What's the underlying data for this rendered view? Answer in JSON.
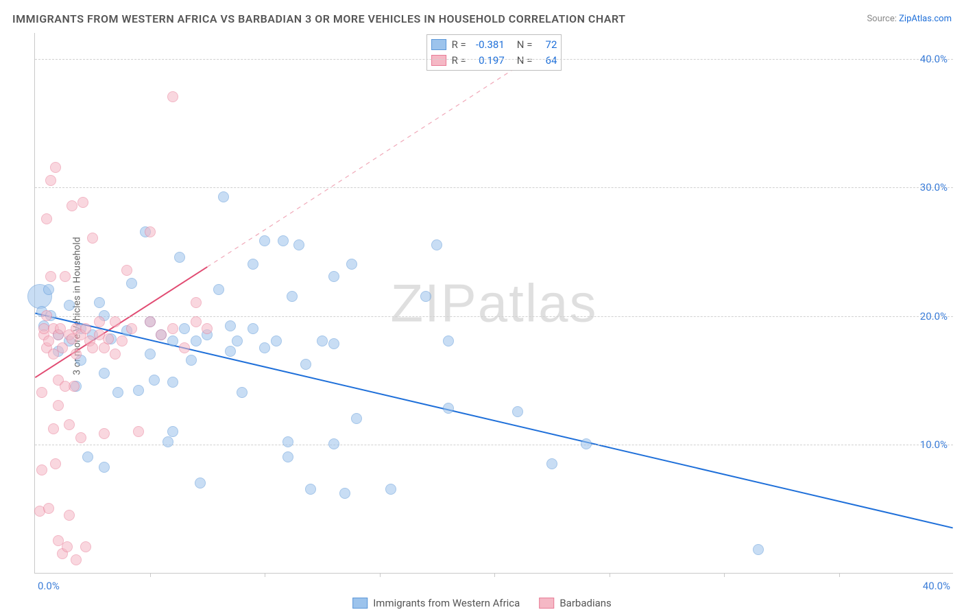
{
  "title": "IMMIGRANTS FROM WESTERN AFRICA VS BARBADIAN 3 OR MORE VEHICLES IN HOUSEHOLD CORRELATION CHART",
  "source_label": "Source:",
  "source_name": "ZipAtlas.com",
  "y_axis_title": "3 or more Vehicles in Household",
  "watermark": "ZIPatlas",
  "chart": {
    "type": "scatter",
    "xlim": [
      0,
      40
    ],
    "ylim": [
      0,
      42
    ],
    "x_label_min": "0.0%",
    "x_label_max": "40.0%",
    "y_gridlines": [
      10,
      20,
      30,
      40
    ],
    "y_gridline_labels": [
      "10.0%",
      "20.0%",
      "30.0%",
      "40.0%"
    ],
    "x_ticks": [
      5,
      10,
      15,
      20,
      25,
      30,
      35
    ],
    "background_color": "#ffffff",
    "grid_color": "#d0d0d0",
    "axis_color": "#c8c8c8",
    "tick_label_color": "#3b7dd8",
    "marker_radius": 8,
    "large_marker_radius": 18,
    "marker_opacity": 0.55,
    "series": [
      {
        "key": "western_africa",
        "label": "Immigrants from Western Africa",
        "fill": "#9cc3ec",
        "stroke": "#5a96d8",
        "trend": {
          "x1": 0,
          "y1": 20.2,
          "x2": 40,
          "y2": 3.5,
          "dash": "none",
          "color": "#1e6fd9",
          "width": 2
        },
        "R": "-0.381",
        "N": "72",
        "points": [
          {
            "x": 0.2,
            "y": 21.5,
            "r": 18
          },
          {
            "x": 0.3,
            "y": 20.3
          },
          {
            "x": 0.4,
            "y": 19.2
          },
          {
            "x": 0.6,
            "y": 22.0
          },
          {
            "x": 0.7,
            "y": 20.0
          },
          {
            "x": 1.0,
            "y": 18.5
          },
          {
            "x": 1.0,
            "y": 17.2
          },
          {
            "x": 1.5,
            "y": 20.8
          },
          {
            "x": 1.5,
            "y": 18.0
          },
          {
            "x": 1.8,
            "y": 14.5
          },
          {
            "x": 2.0,
            "y": 19.0
          },
          {
            "x": 2.0,
            "y": 16.5
          },
          {
            "x": 2.3,
            "y": 9.0
          },
          {
            "x": 2.5,
            "y": 18.5
          },
          {
            "x": 2.8,
            "y": 21.0
          },
          {
            "x": 3.0,
            "y": 20.0
          },
          {
            "x": 3.0,
            "y": 15.5
          },
          {
            "x": 3.0,
            "y": 8.2
          },
          {
            "x": 3.3,
            "y": 18.2
          },
          {
            "x": 3.6,
            "y": 14.0
          },
          {
            "x": 4.0,
            "y": 18.8
          },
          {
            "x": 4.2,
            "y": 22.5
          },
          {
            "x": 4.5,
            "y": 14.2
          },
          {
            "x": 4.8,
            "y": 26.5
          },
          {
            "x": 5.0,
            "y": 19.5
          },
          {
            "x": 5.0,
            "y": 17.0
          },
          {
            "x": 5.2,
            "y": 15.0
          },
          {
            "x": 5.5,
            "y": 18.5
          },
          {
            "x": 5.8,
            "y": 10.2
          },
          {
            "x": 6.0,
            "y": 18.0
          },
          {
            "x": 6.0,
            "y": 14.8
          },
          {
            "x": 6.3,
            "y": 24.5
          },
          {
            "x": 6.5,
            "y": 19.0
          },
          {
            "x": 6.8,
            "y": 16.5
          },
          {
            "x": 7.0,
            "y": 18.0
          },
          {
            "x": 7.2,
            "y": 7.0
          },
          {
            "x": 7.5,
            "y": 18.5
          },
          {
            "x": 8.0,
            "y": 22.0
          },
          {
            "x": 8.2,
            "y": 29.2
          },
          {
            "x": 8.5,
            "y": 19.2
          },
          {
            "x": 8.5,
            "y": 17.2
          },
          {
            "x": 8.8,
            "y": 18.0
          },
          {
            "x": 9.0,
            "y": 14.0
          },
          {
            "x": 9.5,
            "y": 24.0
          },
          {
            "x": 9.5,
            "y": 19.0
          },
          {
            "x": 10.0,
            "y": 17.5
          },
          {
            "x": 10.0,
            "y": 25.8
          },
          {
            "x": 10.5,
            "y": 18.0
          },
          {
            "x": 10.8,
            "y": 25.8
          },
          {
            "x": 11.0,
            "y": 10.2
          },
          {
            "x": 11.0,
            "y": 9.0
          },
          {
            "x": 11.2,
            "y": 21.5
          },
          {
            "x": 11.5,
            "y": 25.5
          },
          {
            "x": 11.8,
            "y": 16.2
          },
          {
            "x": 12.0,
            "y": 6.5
          },
          {
            "x": 12.5,
            "y": 18.0
          },
          {
            "x": 13.0,
            "y": 17.8
          },
          {
            "x": 13.0,
            "y": 10.0
          },
          {
            "x": 13.5,
            "y": 6.2
          },
          {
            "x": 13.8,
            "y": 24.0
          },
          {
            "x": 14.0,
            "y": 12.0
          },
          {
            "x": 15.5,
            "y": 6.5
          },
          {
            "x": 17.0,
            "y": 21.5
          },
          {
            "x": 17.5,
            "y": 25.5
          },
          {
            "x": 18.0,
            "y": 12.8
          },
          {
            "x": 18.0,
            "y": 18.0
          },
          {
            "x": 21.0,
            "y": 12.5
          },
          {
            "x": 22.5,
            "y": 8.5
          },
          {
            "x": 24.0,
            "y": 10.0
          },
          {
            "x": 31.5,
            "y": 1.8
          },
          {
            "x": 13.0,
            "y": 23.0
          },
          {
            "x": 6.0,
            "y": 11.0
          }
        ]
      },
      {
        "key": "barbadians",
        "label": "Barbadians",
        "fill": "#f5b8c5",
        "stroke": "#e87b96",
        "trend_solid": {
          "x1": 0,
          "y1": 15.2,
          "x2": 7.5,
          "y2": 23.8,
          "color": "#e14b72",
          "width": 2
        },
        "trend_dash": {
          "x1": 7.5,
          "y1": 23.8,
          "x2": 22.0,
          "y2": 40.5,
          "color": "#f0a8b8",
          "width": 1.2
        },
        "R": "0.197",
        "N": "64",
        "points": [
          {
            "x": 0.2,
            "y": 4.8
          },
          {
            "x": 0.3,
            "y": 8.0
          },
          {
            "x": 0.3,
            "y": 14.0
          },
          {
            "x": 0.4,
            "y": 18.5
          },
          {
            "x": 0.4,
            "y": 19.0
          },
          {
            "x": 0.5,
            "y": 17.5
          },
          {
            "x": 0.5,
            "y": 20.0
          },
          {
            "x": 0.5,
            "y": 27.5
          },
          {
            "x": 0.6,
            "y": 18.0
          },
          {
            "x": 0.6,
            "y": 5.0
          },
          {
            "x": 0.7,
            "y": 23.0
          },
          {
            "x": 0.7,
            "y": 30.5
          },
          {
            "x": 0.8,
            "y": 17.0
          },
          {
            "x": 0.8,
            "y": 19.0
          },
          {
            "x": 0.8,
            "y": 11.2
          },
          {
            "x": 0.9,
            "y": 31.5
          },
          {
            "x": 0.9,
            "y": 8.5
          },
          {
            "x": 1.0,
            "y": 2.5
          },
          {
            "x": 1.0,
            "y": 18.5
          },
          {
            "x": 1.0,
            "y": 15.0
          },
          {
            "x": 1.1,
            "y": 19.0
          },
          {
            "x": 1.2,
            "y": 17.5
          },
          {
            "x": 1.2,
            "y": 1.5
          },
          {
            "x": 1.3,
            "y": 23.0
          },
          {
            "x": 1.4,
            "y": 2.0
          },
          {
            "x": 1.5,
            "y": 18.5
          },
          {
            "x": 1.5,
            "y": 4.5
          },
          {
            "x": 1.5,
            "y": 11.5
          },
          {
            "x": 1.6,
            "y": 28.5
          },
          {
            "x": 1.6,
            "y": 18.2
          },
          {
            "x": 1.7,
            "y": 14.5
          },
          {
            "x": 1.8,
            "y": 19.0
          },
          {
            "x": 1.8,
            "y": 17.0
          },
          {
            "x": 1.8,
            "y": 1.0
          },
          {
            "x": 2.0,
            "y": 18.5
          },
          {
            "x": 2.0,
            "y": 10.5
          },
          {
            "x": 2.1,
            "y": 28.8
          },
          {
            "x": 2.2,
            "y": 19.0
          },
          {
            "x": 2.2,
            "y": 2.0
          },
          {
            "x": 2.4,
            "y": 18.0
          },
          {
            "x": 2.5,
            "y": 26.0
          },
          {
            "x": 2.5,
            "y": 17.5
          },
          {
            "x": 2.8,
            "y": 18.5
          },
          {
            "x": 2.8,
            "y": 19.5
          },
          {
            "x": 3.0,
            "y": 17.5
          },
          {
            "x": 3.0,
            "y": 10.8
          },
          {
            "x": 3.2,
            "y": 18.2
          },
          {
            "x": 3.5,
            "y": 17.0
          },
          {
            "x": 3.5,
            "y": 19.5
          },
          {
            "x": 3.8,
            "y": 18.0
          },
          {
            "x": 4.0,
            "y": 23.5
          },
          {
            "x": 4.2,
            "y": 19.0
          },
          {
            "x": 4.5,
            "y": 11.0
          },
          {
            "x": 5.0,
            "y": 19.5
          },
          {
            "x": 5.0,
            "y": 26.5
          },
          {
            "x": 5.5,
            "y": 18.5
          },
          {
            "x": 6.0,
            "y": 37.0
          },
          {
            "x": 6.0,
            "y": 19.0
          },
          {
            "x": 6.5,
            "y": 17.5
          },
          {
            "x": 7.0,
            "y": 21.0
          },
          {
            "x": 7.0,
            "y": 19.5
          },
          {
            "x": 7.5,
            "y": 19.0
          },
          {
            "x": 1.0,
            "y": 13.0
          },
          {
            "x": 1.3,
            "y": 14.5
          }
        ]
      }
    ]
  },
  "legend": {
    "stats_rows": [
      {
        "swatch_fill": "#9cc3ec",
        "swatch_stroke": "#5a96d8",
        "r_label": "R =",
        "r_val": "-0.381",
        "n_label": "N =",
        "n_val": "72"
      },
      {
        "swatch_fill": "#f5b8c5",
        "swatch_stroke": "#e87b96",
        "r_label": "R =",
        "r_val": "0.197",
        "n_label": "N =",
        "n_val": "64"
      }
    ]
  }
}
